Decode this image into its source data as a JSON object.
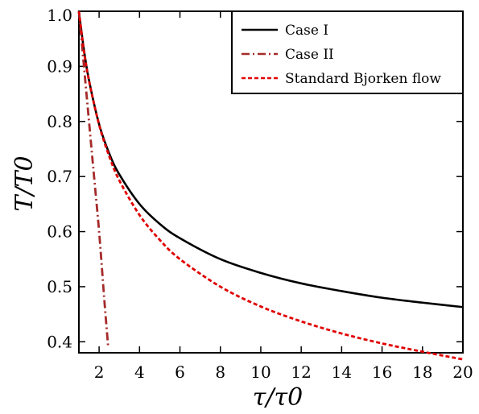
{
  "chart_data": {
    "type": "line",
    "xlabel": "τ/τ0",
    "ylabel": "T/T0",
    "xlim": [
      1,
      20
    ],
    "ylim": [
      0.38,
      1.0
    ],
    "x_ticks": [
      2,
      4,
      6,
      8,
      10,
      12,
      14,
      16,
      18,
      20
    ],
    "y_ticks": [
      0.4,
      0.5,
      0.6,
      0.7,
      0.8,
      0.9,
      1.0
    ],
    "x_tick_labels": [
      "2",
      "4",
      "6",
      "8",
      "10",
      "12",
      "14",
      "16",
      "18",
      "20"
    ],
    "y_tick_labels": [
      "0.4",
      "0.5",
      "0.6",
      "0.7",
      "0.8",
      "0.9",
      "1.0"
    ],
    "grid": false,
    "legend_position": "top-right",
    "series": [
      {
        "name": "Case I",
        "color": "#000000",
        "dash": "solid",
        "x": [
          1,
          1.25,
          1.5,
          2,
          2.5,
          3,
          4,
          5,
          6,
          8,
          10,
          12,
          14,
          16,
          18,
          20
        ],
        "y": [
          1.0,
          0.93,
          0.875,
          0.795,
          0.742,
          0.704,
          0.65,
          0.614,
          0.588,
          0.55,
          0.525,
          0.506,
          0.492,
          0.48,
          0.471,
          0.463
        ]
      },
      {
        "name": "Case II",
        "color": "#a52a2a",
        "dash": "dashdot",
        "x": [
          1,
          1.25,
          1.5,
          1.75,
          2,
          2.25,
          2.45
        ],
        "y": [
          1.0,
          0.9,
          0.8,
          0.7,
          0.6,
          0.48,
          0.39
        ]
      },
      {
        "name": "Standard Bjorken flow",
        "color": "#e00000",
        "dash": "dotted",
        "x": [
          1,
          1.25,
          1.5,
          2,
          2.5,
          3,
          4,
          5,
          6,
          8,
          10,
          12,
          14,
          16,
          18,
          20
        ],
        "y": [
          1.0,
          0.928,
          0.874,
          0.794,
          0.737,
          0.693,
          0.63,
          0.585,
          0.55,
          0.5,
          0.464,
          0.437,
          0.415,
          0.397,
          0.382,
          0.368
        ]
      }
    ]
  }
}
